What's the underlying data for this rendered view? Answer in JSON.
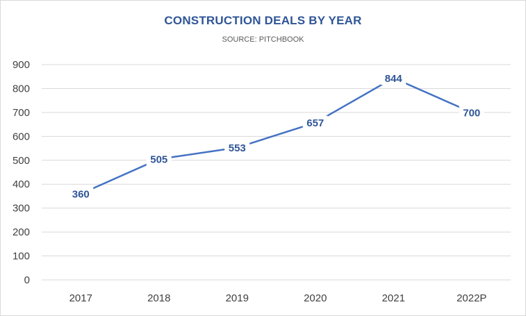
{
  "chart_data": {
    "type": "line",
    "title": "CONSTRUCTION DEALS BY YEAR",
    "subtitle": "SOURCE: PITCHBOOK",
    "categories": [
      "2017",
      "2018",
      "2019",
      "2020",
      "2021",
      "2022P"
    ],
    "values": [
      360,
      505,
      553,
      657,
      844,
      700
    ],
    "data_labels": [
      "360",
      "505",
      "553",
      "657",
      "844",
      "700"
    ],
    "ylim": [
      0,
      900
    ],
    "yticks": [
      0,
      100,
      200,
      300,
      400,
      500,
      600,
      700,
      800,
      900
    ],
    "grid": true,
    "legend": "none",
    "colors": {
      "line": "#4472c4",
      "label": "#2f5597",
      "grid": "#d9d9d9",
      "title": "#2f5597"
    }
  }
}
